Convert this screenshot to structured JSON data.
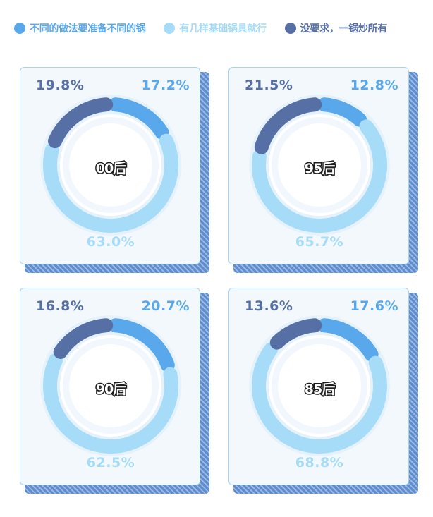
{
  "colors": {
    "a": "#5aa8ec",
    "b": "#a6dcf8",
    "c": "#5670a6",
    "track": "#e6f2fb"
  },
  "legend": [
    {
      "label": "不同的做法要准备不同的锅",
      "color": "#5aa8ec"
    },
    {
      "label": "有几样基础锅具就行",
      "color": "#a6dcf8"
    },
    {
      "label": "没要求，一锅炒所有",
      "color": "#5670a6"
    }
  ],
  "chart_data": [
    {
      "type": "pie",
      "center_label": "00后",
      "categories": [
        "不同的做法要准备不同的锅",
        "有几样基础锅具就行",
        "没要求，一锅炒所有"
      ],
      "values": [
        17.2,
        63.0,
        19.8
      ],
      "labels": [
        "17.2%",
        "63.0%",
        "19.8%"
      ]
    },
    {
      "type": "pie",
      "center_label": "95后",
      "categories": [
        "不同的做法要准备不同的锅",
        "有几样基础锅具就行",
        "没要求，一锅炒所有"
      ],
      "values": [
        12.8,
        65.7,
        21.5
      ],
      "labels": [
        "12.8%",
        "65.7%",
        "21.5%"
      ]
    },
    {
      "type": "pie",
      "center_label": "90后",
      "categories": [
        "不同的做法要准备不同的锅",
        "有几样基础锅具就行",
        "没要求，一锅炒所有"
      ],
      "values": [
        20.7,
        62.5,
        16.8
      ],
      "labels": [
        "20.7%",
        "62.5%",
        "16.8%"
      ]
    },
    {
      "type": "pie",
      "center_label": "85后",
      "categories": [
        "不同的做法要准备不同的锅",
        "有几样基础锅具就行",
        "没要求，一锅炒所有"
      ],
      "values": [
        17.6,
        68.8,
        13.6
      ],
      "labels": [
        "17.6%",
        "68.8%",
        "13.6%"
      ]
    }
  ]
}
